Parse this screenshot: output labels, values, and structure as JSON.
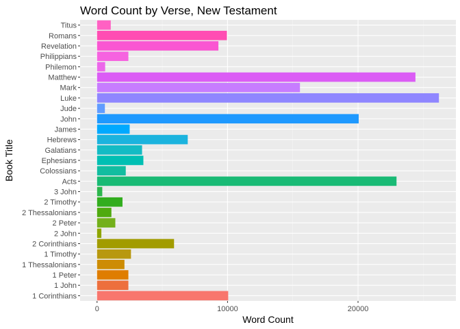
{
  "chart_data": {
    "type": "bar",
    "orientation": "horizontal",
    "title": "Word Count by Verse, New Testament",
    "xlabel": "Word Count",
    "ylabel": "Book Title",
    "xlim": [
      -1300,
      27500
    ],
    "x_ticks": [
      0,
      10000,
      20000
    ],
    "x_tick_labels": [
      "0",
      "10000",
      "20000"
    ],
    "grid": true,
    "legend": "none",
    "categories": [
      "Titus",
      "Romans",
      "Revelation",
      "Philippians",
      "Philemon",
      "Matthew",
      "Mark",
      "Luke",
      "Jude",
      "John",
      "James",
      "Hebrews",
      "Galatians",
      "Ephesians",
      "Colossians",
      "Acts",
      "3 John",
      "2 Timothy",
      "2 Thessalonians",
      "2 Peter",
      "2 John",
      "2 Corinthians",
      "1 Timothy",
      "1 Thessalonians",
      "1 Peter",
      "1 John",
      "1 Corinthians"
    ],
    "values": [
      1050,
      9950,
      9300,
      2400,
      620,
      24400,
      15550,
      26200,
      600,
      20050,
      2500,
      6950,
      3450,
      3550,
      2200,
      22950,
      400,
      1950,
      1100,
      1400,
      330,
      5900,
      2600,
      2100,
      2400,
      2400,
      10050
    ],
    "colors": [
      "#FF61C3",
      "#FF4DB3",
      "#FA56D2",
      "#F663E0",
      "#EC67EA",
      "#DB5CF5",
      "#C77CFF",
      "#8F86FF",
      "#619CFF",
      "#1E99FF",
      "#00A9FF",
      "#1BB3DE",
      "#13BBC4",
      "#00BFB3",
      "#12BDA0",
      "#19BA75",
      "#2DB64D",
      "#32AD1E",
      "#4FAA0F",
      "#73B01B",
      "#8EA500",
      "#A29C00",
      "#B8980F",
      "#CD8C04",
      "#DF7D00",
      "#ED6F3D",
      "#F8766D"
    ]
  }
}
